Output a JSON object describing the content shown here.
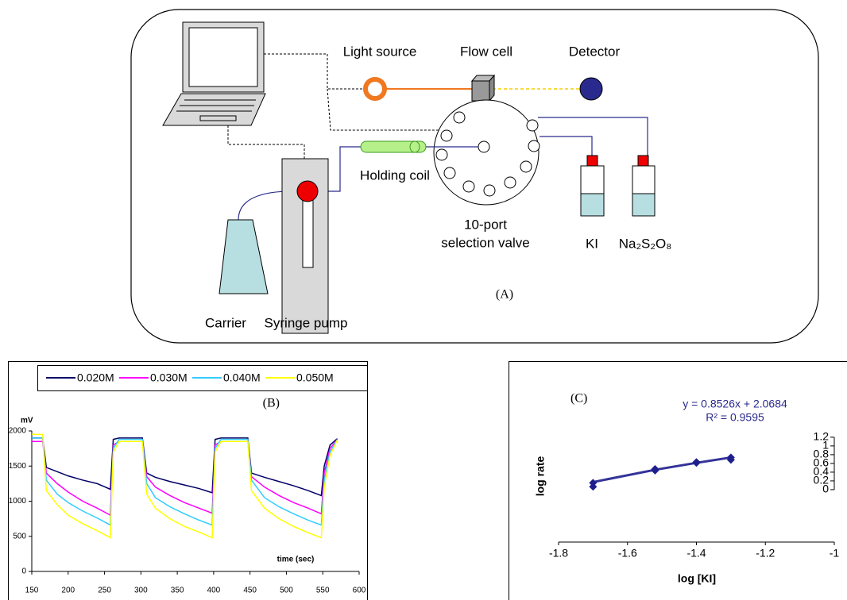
{
  "diagram": {
    "light_source": "Light source",
    "flow_cell": "Flow cell",
    "detector": "Detector",
    "holding_coil": "Holding coil",
    "valve_line1": "10-port",
    "valve_line2": "selection valve",
    "reagent1": "KI",
    "reagent2": "Na₂S₂O₈",
    "panel": "(A)",
    "carrier": "Carrier",
    "syringe_pump": "Syringe pump"
  },
  "chart_data": [
    {
      "type": "line",
      "title": "(B)",
      "ylabel": "mV",
      "xlabel": "time (sec)",
      "legend": "top",
      "x": [
        150,
        165,
        170,
        185,
        200,
        220,
        240,
        258,
        262,
        270,
        290,
        302,
        308,
        320,
        340,
        360,
        380,
        398,
        402,
        410,
        430,
        447,
        452,
        470,
        490,
        510,
        530,
        548,
        552,
        560,
        570
      ],
      "series": [
        {
          "name": "0.020M",
          "color": "#000066",
          "values": [
            1900,
            1900,
            1480,
            1420,
            1360,
            1300,
            1250,
            1170,
            1880,
            1900,
            1900,
            1900,
            1400,
            1340,
            1280,
            1230,
            1180,
            1120,
            1880,
            1900,
            1900,
            1900,
            1400,
            1340,
            1280,
            1220,
            1150,
            1080,
            1500,
            1800,
            1890
          ]
        },
        {
          "name": "0.030M",
          "color": "#ff00ff",
          "values": [
            1850,
            1850,
            1400,
            1250,
            1130,
            1000,
            900,
            800,
            1800,
            1850,
            1850,
            1850,
            1350,
            1200,
            1080,
            980,
            900,
            830,
            1800,
            1850,
            1850,
            1850,
            1350,
            1200,
            1080,
            980,
            900,
            820,
            1400,
            1750,
            1880
          ]
        },
        {
          "name": "0.040M",
          "color": "#33ccff",
          "values": [
            1900,
            1900,
            1300,
            1100,
            980,
            860,
            760,
            660,
            1750,
            1880,
            1880,
            1880,
            1250,
            1050,
            920,
            820,
            730,
            660,
            1750,
            1880,
            1880,
            1880,
            1300,
            1050,
            920,
            820,
            730,
            660,
            1300,
            1700,
            1880
          ]
        },
        {
          "name": "0.050M",
          "color": "#ffff00",
          "values": [
            1950,
            1950,
            1150,
            950,
            800,
            680,
            580,
            480,
            1700,
            1850,
            1850,
            1850,
            1100,
            900,
            750,
            640,
            560,
            480,
            1700,
            1850,
            1850,
            1850,
            1150,
            900,
            750,
            640,
            550,
            480,
            1200,
            1650,
            1870
          ]
        }
      ],
      "xlim": [
        150,
        600
      ],
      "xticks": [
        150,
        200,
        250,
        300,
        350,
        400,
        450,
        500,
        550,
        600
      ],
      "ylim": [
        0,
        2000
      ],
      "yticks": [
        0,
        500,
        1000,
        1500,
        2000
      ]
    },
    {
      "type": "scatter",
      "title": "(C)",
      "equation": "y = 0.8526x + 2.0684",
      "r_squared": "R² = 0.9595",
      "xlabel": "log [KI]",
      "ylabel": "log rate",
      "color": "#1f1f8c",
      "x": [
        -1.7,
        -1.7,
        -1.52,
        -1.52,
        -1.4,
        -1.4,
        -1.3,
        -1.3
      ],
      "y": [
        0.62,
        0.57,
        0.8,
        0.78,
        0.89,
        0.88,
        0.95,
        0.92
      ],
      "trendline": {
        "color": "#333399",
        "x": [
          -1.7,
          -1.52,
          -1.4,
          -1.3
        ],
        "y": [
          0.63,
          0.79,
          0.88,
          0.95
        ]
      },
      "xlim": [
        -1.8,
        -1
      ],
      "xticks": [
        -1.8,
        -1.6,
        -1.4,
        -1.2,
        -1
      ],
      "ylim": [
        -0.15,
        2.1
      ],
      "y2lim": [
        -1.2,
        2.76
      ],
      "y2ticks": [
        0,
        0.2,
        0.4,
        0.6,
        0.8,
        1,
        1.2
      ]
    }
  ]
}
